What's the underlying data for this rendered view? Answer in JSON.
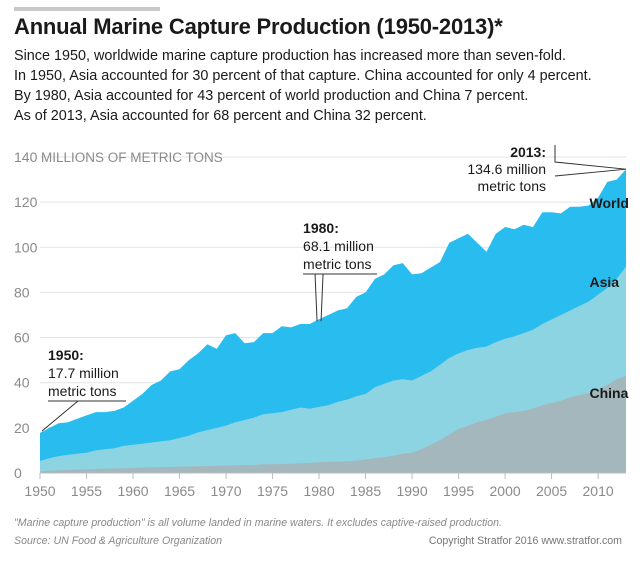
{
  "title": "Annual Marine Capture Production (1950-2013)*",
  "intro": [
    "Since 1950, worldwide marine capture production has increased more than seven-fold.",
    "In 1950, Asia accounted for 30 percent of that capture. China accounted for only 4 percent.",
    "By 1980, Asia accounted for 43 percent of world production and China 7 percent.",
    "As of 2013, Asia accounted for 68 percent and China 32 percent."
  ],
  "footnote": "\"Marine capture production\" is all volume landed in marine waters. It excludes captive-raised production.",
  "source": "Source: UN Food & Agriculture Organization",
  "copyright": "Copyright Stratfor 2016   www.stratfor.com",
  "chart_data": {
    "type": "area",
    "ylabel": "MILLIONS OF METRIC TONS",
    "xlim": [
      1950,
      2013
    ],
    "ylim": [
      0,
      140
    ],
    "yticks": [
      0,
      20,
      40,
      60,
      80,
      100,
      120,
      140
    ],
    "xticks": [
      1950,
      1955,
      1960,
      1965,
      1970,
      1975,
      1980,
      1985,
      1990,
      1995,
      2000,
      2005,
      2010
    ],
    "grid": true,
    "colors": {
      "World": "#29bdef",
      "Asia": "#8dd4e2",
      "China": "#a3b7bd"
    },
    "x": [
      1950,
      1951,
      1952,
      1953,
      1954,
      1955,
      1956,
      1957,
      1958,
      1959,
      1960,
      1961,
      1962,
      1963,
      1964,
      1965,
      1966,
      1967,
      1968,
      1969,
      1970,
      1971,
      1972,
      1973,
      1974,
      1975,
      1976,
      1977,
      1978,
      1979,
      1980,
      1981,
      1982,
      1983,
      1984,
      1985,
      1986,
      1987,
      1988,
      1989,
      1990,
      1991,
      1992,
      1993,
      1994,
      1995,
      1996,
      1997,
      1998,
      1999,
      2000,
      2001,
      2002,
      2003,
      2004,
      2005,
      2006,
      2007,
      2008,
      2009,
      2010,
      2011,
      2012,
      2013
    ],
    "series": [
      {
        "name": "World",
        "values": [
          17.7,
          20,
          22,
          22.5,
          24,
          25.5,
          27,
          27,
          27.5,
          29,
          32,
          35,
          39,
          41,
          45,
          46,
          50,
          53,
          57,
          55,
          61,
          62,
          57.5,
          58,
          62,
          62,
          65,
          64.5,
          66,
          66,
          68.1,
          70,
          72,
          73,
          78,
          80,
          86,
          88,
          92,
          93,
          88,
          88.5,
          91,
          93.5,
          102,
          104,
          106,
          102,
          98,
          106,
          109,
          108,
          110,
          109,
          115.5,
          115.5,
          115,
          118,
          118,
          118.5,
          122,
          129,
          130,
          134.6
        ]
      },
      {
        "name": "Asia",
        "values": [
          5.3,
          6.5,
          7.5,
          8,
          8.5,
          9,
          10,
          10.5,
          11,
          12,
          12.5,
          13,
          13.5,
          14,
          14.5,
          15.5,
          16.5,
          18,
          19,
          20,
          21,
          22.5,
          23.5,
          24.5,
          26,
          26.5,
          27,
          28,
          29,
          28.5,
          29.3,
          30,
          31.5,
          32.5,
          34,
          35,
          38,
          39.5,
          41,
          41.5,
          41,
          43,
          45,
          48,
          51,
          53,
          54.5,
          55.5,
          56,
          58,
          59.5,
          60.5,
          62,
          63.5,
          66,
          68,
          70,
          72,
          74,
          76,
          79,
          82,
          86,
          91.5
        ]
      },
      {
        "name": "China",
        "values": [
          0.7,
          1,
          1.2,
          1.3,
          1.5,
          1.6,
          1.8,
          1.9,
          2,
          2.1,
          2.3,
          2.4,
          2.5,
          2.6,
          2.7,
          2.8,
          2.9,
          3,
          3.1,
          3.2,
          3.3,
          3.4,
          3.5,
          3.6,
          3.8,
          3.9,
          4,
          4.1,
          4.3,
          4.5,
          4.8,
          4.9,
          5,
          5.2,
          5.5,
          6,
          6.5,
          7,
          7.7,
          8.5,
          9,
          10.5,
          12.5,
          14.5,
          17,
          19.5,
          21,
          22.5,
          23.5,
          25,
          26.5,
          27,
          27.5,
          28.5,
          30,
          31,
          32,
          33.5,
          34.5,
          35.5,
          37,
          39,
          41.5,
          43.1
        ]
      }
    ],
    "annotations": [
      {
        "year": 1950,
        "value": 17.7,
        "lines": [
          "1950:",
          "17.7 million",
          "metric tons"
        ]
      },
      {
        "year": 1980,
        "value": 68.1,
        "lines": [
          "1980:",
          "68.1 million",
          "metric tons"
        ]
      },
      {
        "year": 2013,
        "value": 134.6,
        "lines": [
          "2013:",
          "134.6 million",
          "metric tons"
        ]
      }
    ],
    "series_labels": [
      "World",
      "Asia",
      "China"
    ]
  }
}
